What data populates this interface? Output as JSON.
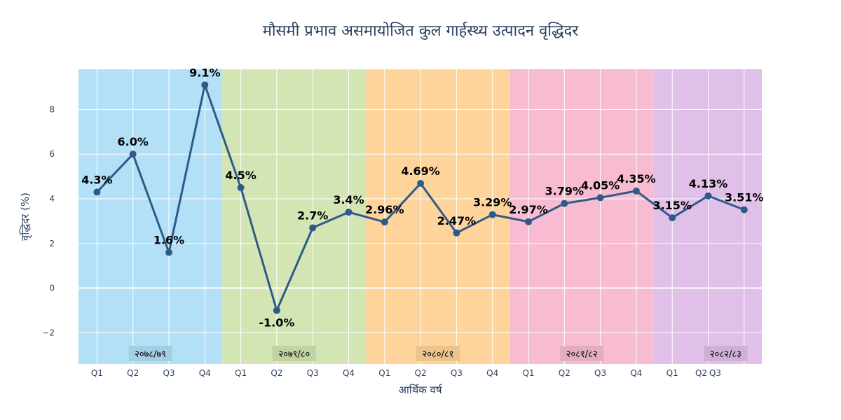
{
  "chart_data": {
    "type": "line",
    "title": "मौसमी प्रभाव असमायोजित कुल गार्हस्थ्य उत्पादन वृद्धिदर",
    "xlabel": "आर्थिक वर्ष",
    "ylabel": "वृद्धिदर (%)",
    "ylim": [
      -3.4,
      9.8
    ],
    "yticks": [
      -2,
      0,
      2,
      4,
      6,
      8
    ],
    "ytick_labels": [
      "−2",
      "0",
      "2",
      "4",
      "6",
      "8"
    ],
    "grid": true,
    "line_color": "#2e5a8a",
    "years": [
      {
        "label": "२०७८/७९",
        "color": "#b3e0f7",
        "quarters": [
          "Q1",
          "Q2",
          "Q3",
          "Q4"
        ],
        "values": [
          4.3,
          6.0,
          1.6,
          9.1
        ],
        "value_labels": [
          "4.3%",
          "6.0%",
          "1.6%",
          "9.1%"
        ]
      },
      {
        "label": "२०७९/८०",
        "color": "#d2e5b3",
        "quarters": [
          "Q1",
          "Q2",
          "Q3",
          "Q4"
        ],
        "values": [
          4.5,
          -1.0,
          2.7,
          3.4
        ],
        "value_labels": [
          "4.5%",
          "-1.0%",
          "2.7%",
          "3.4%"
        ]
      },
      {
        "label": "२०८०/८१",
        "color": "#fed49a",
        "quarters": [
          "Q1",
          "Q2",
          "Q3",
          "Q4"
        ],
        "values": [
          2.96,
          4.69,
          2.47,
          3.29
        ],
        "value_labels": [
          "2.96%",
          "4.69%",
          "2.47%",
          "3.29%"
        ]
      },
      {
        "label": "२०८१/८२",
        "color": "#f7bcd1",
        "quarters": [
          "Q1",
          "Q2",
          "Q3",
          "Q4"
        ],
        "values": [
          2.97,
          3.79,
          4.05,
          4.35
        ],
        "value_labels": [
          "2.97%",
          "3.79%",
          "4.05%",
          "4.35%"
        ]
      },
      {
        "label": "२०८२/८३",
        "color": "#e0bfe8",
        "quarters": [
          "Q1",
          "Q2",
          "Q3"
        ],
        "values": [
          3.15,
          4.13,
          3.51
        ],
        "value_labels": [
          "3.15%",
          "4.13%",
          "3.51%"
        ]
      }
    ]
  }
}
